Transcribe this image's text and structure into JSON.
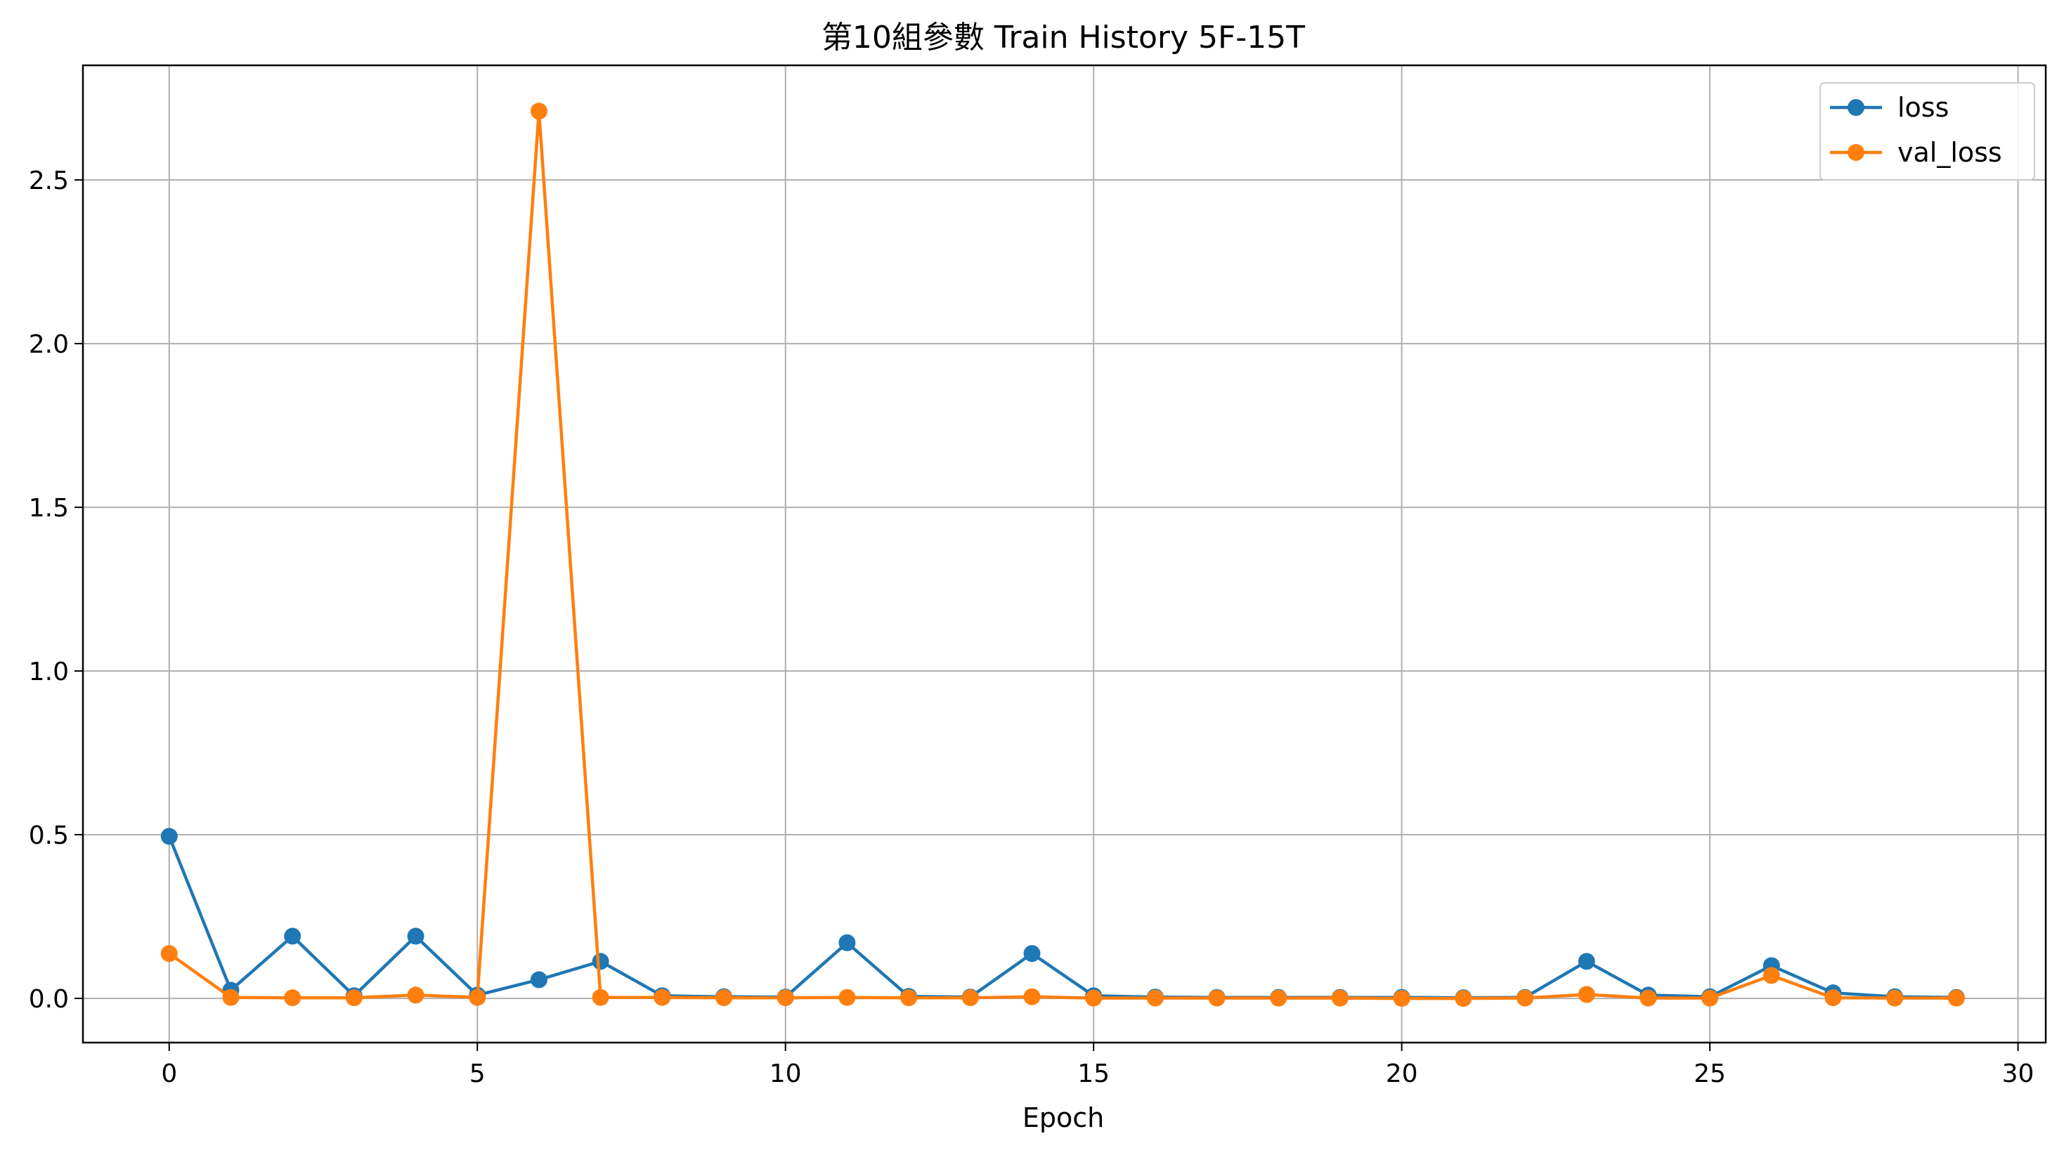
{
  "chart_data": {
    "type": "line",
    "title": "第10組參數 Train History 5F-15T",
    "xlabel": "Epoch",
    "ylabel": "",
    "xlim": [
      -1.4,
      30.45
    ],
    "ylim": [
      -0.135,
      2.85
    ],
    "xticks": [
      0,
      5,
      10,
      15,
      20,
      25,
      30
    ],
    "yticks": [
      0.0,
      0.5,
      1.0,
      1.5,
      2.0,
      2.5
    ],
    "ytick_labels": [
      "0.0",
      "0.5",
      "1.0",
      "1.5",
      "2.0",
      "2.5"
    ],
    "grid": true,
    "legend_position": "top-right",
    "x": [
      0,
      1,
      2,
      3,
      4,
      5,
      6,
      7,
      8,
      9,
      10,
      11,
      12,
      13,
      14,
      15,
      16,
      17,
      18,
      19,
      20,
      21,
      22,
      23,
      24,
      25,
      26,
      27,
      28,
      29
    ],
    "series": [
      {
        "name": "loss",
        "color": "#1f77b4",
        "values": [
          0.495,
          0.025,
          0.19,
          0.008,
          0.19,
          0.01,
          0.057,
          0.113,
          0.008,
          0.005,
          0.004,
          0.17,
          0.006,
          0.004,
          0.137,
          0.008,
          0.004,
          0.003,
          0.003,
          0.003,
          0.003,
          0.002,
          0.003,
          0.113,
          0.01,
          0.005,
          0.1,
          0.017,
          0.005,
          0.003
        ]
      },
      {
        "name": "val_loss",
        "color": "#ff7f0e",
        "values": [
          0.137,
          0.003,
          0.002,
          0.002,
          0.01,
          0.003,
          2.71,
          0.003,
          0.003,
          0.002,
          0.002,
          0.003,
          0.002,
          0.002,
          0.005,
          0.001,
          0.001,
          0.001,
          0.001,
          0.001,
          0.0,
          0.0,
          0.001,
          0.012,
          0.001,
          0.001,
          0.07,
          0.002,
          0.001,
          0.001
        ]
      }
    ]
  }
}
